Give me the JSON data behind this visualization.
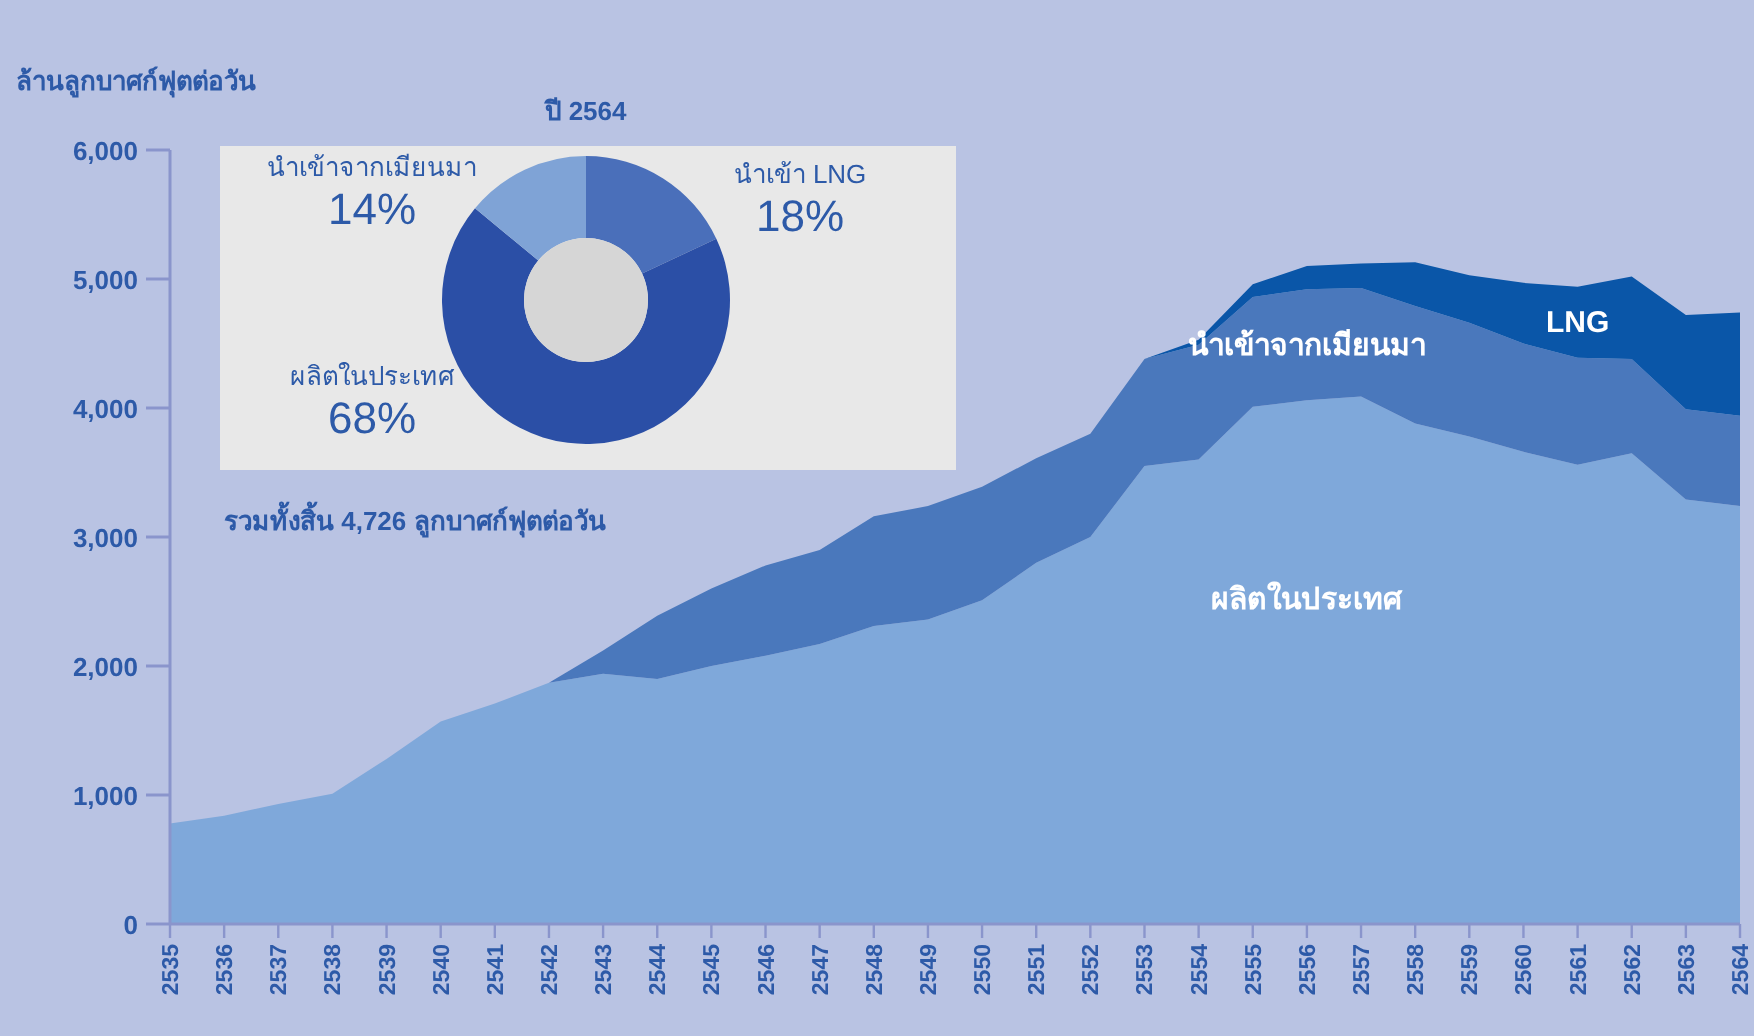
{
  "chart_data": [
    {
      "type": "area",
      "stacked": true,
      "ylabel": "ล้านลูกบาศก์ฟุตต่อวัน",
      "categories": [
        "2535",
        "2536",
        "2537",
        "2538",
        "2539",
        "2540",
        "2541",
        "2542",
        "2543",
        "2544",
        "2545",
        "2546",
        "2547",
        "2548",
        "2549",
        "2550",
        "2551",
        "2552",
        "2553",
        "2554",
        "2555",
        "2556",
        "2557",
        "2558",
        "2559",
        "2560",
        "2561",
        "2562",
        "2563",
        "2564"
      ],
      "series": [
        {
          "name": "ผลิตในประเทศ",
          "color": "#7fa8da",
          "values": [
            780,
            840,
            930,
            1010,
            1280,
            1570,
            1710,
            1870,
            1940,
            1900,
            2000,
            2080,
            2170,
            2310,
            2360,
            2510,
            2800,
            3000,
            3550,
            3600,
            4010,
            4060,
            4090,
            3880,
            3780,
            3660,
            3560,
            3650,
            3290,
            3240
          ]
        },
        {
          "name": "นำเข้าจากเมียนมา",
          "color": "#4a78bc",
          "values": [
            0,
            0,
            0,
            0,
            0,
            0,
            0,
            0,
            180,
            490,
            600,
            700,
            730,
            850,
            880,
            880,
            810,
            800,
            830,
            890,
            850,
            860,
            840,
            910,
            880,
            840,
            830,
            730,
            700,
            700
          ]
        },
        {
          "name": "LNG",
          "color": "#0a56a8",
          "values": [
            0,
            0,
            0,
            0,
            0,
            0,
            0,
            0,
            0,
            0,
            0,
            0,
            0,
            0,
            0,
            0,
            0,
            0,
            0,
            40,
            100,
            180,
            190,
            340,
            370,
            470,
            550,
            640,
            730,
            800
          ]
        }
      ],
      "ylim": [
        0,
        6000
      ],
      "yticks": [
        0,
        {
          "value": 1000,
          "label": "1,000"
        },
        {
          "value": 2000,
          "label": "2,000"
        },
        {
          "value": 3000,
          "label": "3,000"
        },
        {
          "value": 4000,
          "label": "4,000"
        },
        {
          "value": 5000,
          "label": "5,000"
        },
        {
          "value": 6000,
          "label": "6,000"
        }
      ],
      "grid": false
    },
    {
      "type": "donut",
      "title": "ปี 2564",
      "categories": [
        "นำเข้า LNG",
        "ผลิตในประเทศ",
        "นำเข้าจากเมียนมา"
      ],
      "values": [
        18,
        68,
        14
      ],
      "colors": [
        "#4a6fba",
        "#2b4fa6",
        "#7fa3d6"
      ],
      "value_labels": [
        "18%",
        "68%",
        "14%"
      ],
      "annotations": [
        "รวมทั้งสิ้น 4,726 ลูกบาศก์ฟุตต่อวัน"
      ]
    }
  ]
}
